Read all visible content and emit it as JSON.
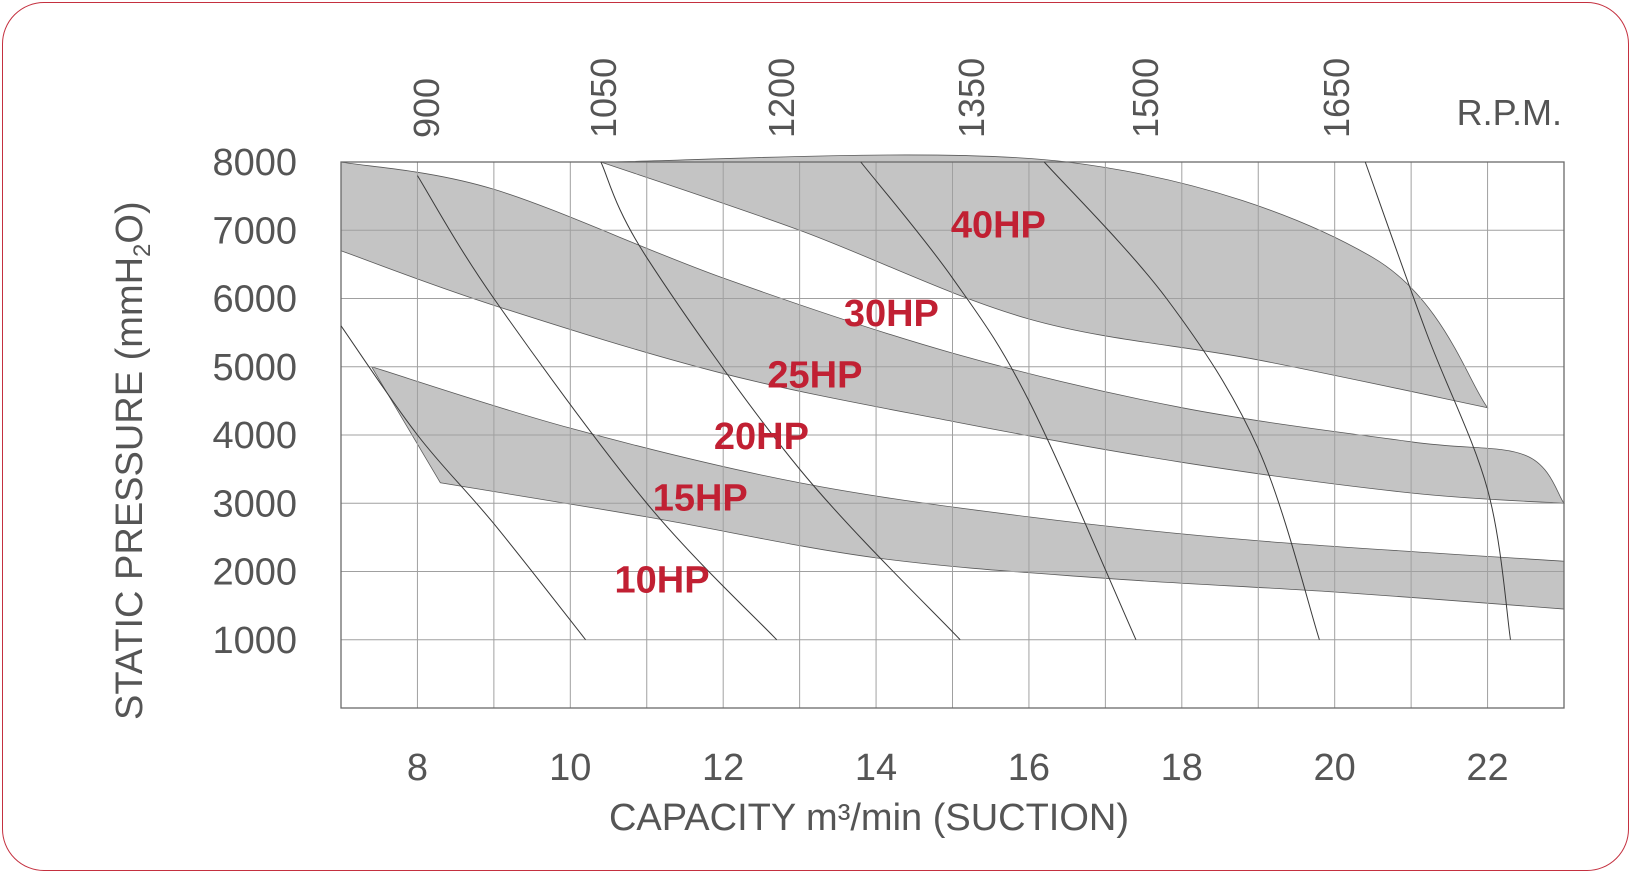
{
  "chart_data": {
    "type": "area",
    "xlabel": "CAPACITY m³/min (SUCTION)",
    "ylabel": "STATIC PRESSURE (mmH",
    "ylabel_sub": "2",
    "ylabel_end": "O)",
    "xlim": [
      7,
      23
    ],
    "ylim": [
      0,
      8000
    ],
    "x_ticks": [
      "8",
      "10",
      "12",
      "14",
      "16",
      "18",
      "20",
      "22"
    ],
    "y_ticks": [
      "8000",
      "7000",
      "6000",
      "5000",
      "4000",
      "3000",
      "2000",
      "1000"
    ],
    "grid": true,
    "rpm_label": "R.P.M.",
    "rpm_values": [
      "900",
      "1050",
      "1200",
      "1350",
      "1500",
      "1650"
    ],
    "rpm_curves": [
      {
        "rpm": "900",
        "points": [
          [
            7.0,
            5600
          ],
          [
            8.0,
            4000
          ],
          [
            9.0,
            2700
          ],
          [
            10.2,
            1000
          ]
        ]
      },
      {
        "rpm": "1050",
        "points": [
          [
            8.0,
            7800
          ],
          [
            9.0,
            6000
          ],
          [
            11.0,
            3000
          ],
          [
            12.7,
            1000
          ]
        ]
      },
      {
        "rpm": "1200",
        "points": [
          [
            10.4,
            8000
          ],
          [
            11.0,
            6600
          ],
          [
            13.0,
            3500
          ],
          [
            15.1,
            1000
          ]
        ]
      },
      {
        "rpm": "1350",
        "points": [
          [
            13.8,
            8000
          ],
          [
            15.0,
            6300
          ],
          [
            16.0,
            4500
          ],
          [
            17.4,
            1000
          ]
        ]
      },
      {
        "rpm": "1500",
        "points": [
          [
            16.2,
            8000
          ],
          [
            17.8,
            6000
          ],
          [
            19.0,
            3800
          ],
          [
            19.8,
            1000
          ]
        ]
      },
      {
        "rpm": "1650",
        "points": [
          [
            20.4,
            8000
          ],
          [
            21.2,
            5500
          ],
          [
            22.0,
            3200
          ],
          [
            22.3,
            1000
          ]
        ]
      }
    ],
    "bands": [
      {
        "upper": [
          [
            7.4,
            5000
          ],
          [
            10.0,
            4100
          ],
          [
            13.0,
            3300
          ],
          [
            16.0,
            2800
          ],
          [
            19.0,
            2450
          ],
          [
            23.0,
            2150
          ]
        ],
        "lower": [
          [
            8.3,
            3300
          ],
          [
            11.0,
            2800
          ],
          [
            14.0,
            2200
          ],
          [
            17.0,
            1900
          ],
          [
            20.0,
            1700
          ],
          [
            23.0,
            1450
          ]
        ]
      },
      {
        "upper": [
          [
            7.0,
            8000
          ],
          [
            9.0,
            7600
          ],
          [
            12.0,
            6300
          ],
          [
            15.0,
            5200
          ],
          [
            18.0,
            4400
          ],
          [
            21.0,
            3900
          ],
          [
            22.5,
            3700
          ],
          [
            23.0,
            3000
          ]
        ],
        "lower": [
          [
            7.0,
            6700
          ],
          [
            9.0,
            5900
          ],
          [
            12.0,
            4900
          ],
          [
            15.0,
            4200
          ],
          [
            18.0,
            3600
          ],
          [
            21.0,
            3150
          ],
          [
            23.0,
            3000
          ]
        ]
      },
      {
        "upper": [
          [
            10.4,
            8000
          ],
          [
            16.5,
            8000
          ],
          [
            20.5,
            6600
          ],
          [
            22.0,
            4400
          ]
        ],
        "lower": [
          [
            10.4,
            8000
          ],
          [
            13.0,
            7000
          ],
          [
            16.0,
            5700
          ],
          [
            19.0,
            5100
          ],
          [
            22.0,
            4400
          ]
        ]
      }
    ],
    "labels": [
      "10HP",
      "15HP",
      "20HP",
      "25HP",
      "30HP",
      "40HP"
    ],
    "label_points": [
      [
        11.2,
        1900
      ],
      [
        11.7,
        3100
      ],
      [
        12.5,
        4000
      ],
      [
        13.2,
        4900
      ],
      [
        14.2,
        5800
      ],
      [
        15.6,
        7100
      ]
    ],
    "colors": {
      "band": "#c4c4c4",
      "grid": "#a0a0a0",
      "label": "#c12033",
      "text": "#555555",
      "frame": "#c4303f"
    }
  }
}
